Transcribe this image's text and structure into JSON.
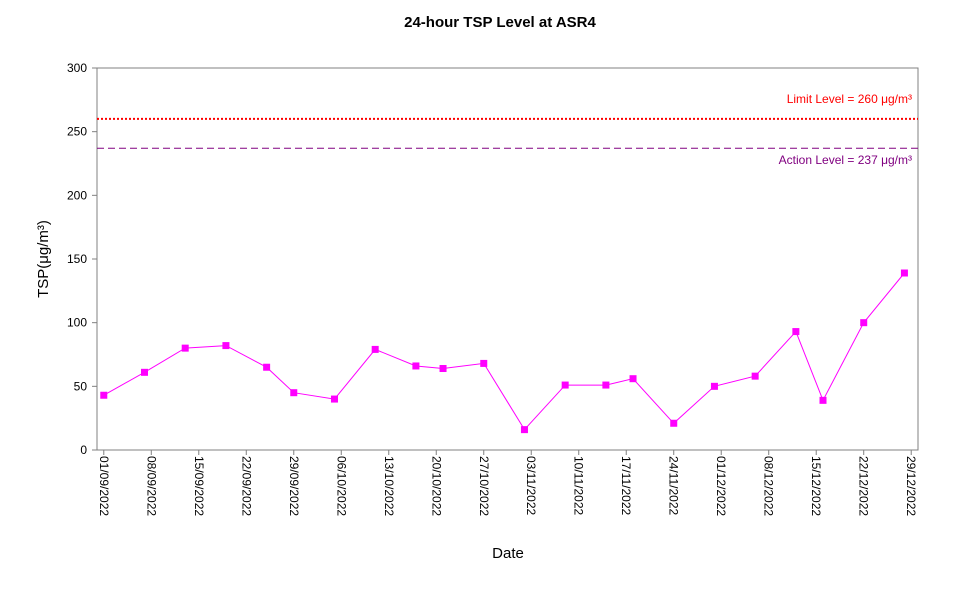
{
  "chart_data": {
    "type": "line",
    "title": "24-hour TSP Level at ASR4",
    "xlabel": "Date",
    "ylabel": "TSP(μg/m³)",
    "ylim": [
      0,
      300
    ],
    "yticks": [
      0,
      50,
      100,
      150,
      200,
      250,
      300
    ],
    "x_tick_labels": [
      "01/09/2022",
      "08/09/2022",
      "15/09/2022",
      "22/09/2022",
      "29/09/2022",
      "06/10/2022",
      "13/10/2022",
      "20/10/2022",
      "27/10/2022",
      "03/11/2022",
      "10/11/2022",
      "17/11/2022",
      "24/11/2022",
      "01/12/2022",
      "08/12/2022",
      "15/12/2022",
      "22/12/2022",
      "29/12/2022"
    ],
    "xlim": [
      "2022-08-31",
      "2022-12-30"
    ],
    "grid": false,
    "series": [
      {
        "name": "",
        "color": "#ff00ff",
        "marker": "square",
        "points": [
          {
            "date": "2022-09-01",
            "value": 43
          },
          {
            "date": "2022-09-07",
            "value": 61
          },
          {
            "date": "2022-09-13",
            "value": 80
          },
          {
            "date": "2022-09-19",
            "value": 82
          },
          {
            "date": "2022-09-25",
            "value": 65
          },
          {
            "date": "2022-09-29",
            "value": 45
          },
          {
            "date": "2022-10-05",
            "value": 40
          },
          {
            "date": "2022-10-11",
            "value": 79
          },
          {
            "date": "2022-10-17",
            "value": 66
          },
          {
            "date": "2022-10-21",
            "value": 64
          },
          {
            "date": "2022-10-27",
            "value": 68
          },
          {
            "date": "2022-11-02",
            "value": 16
          },
          {
            "date": "2022-11-08",
            "value": 51
          },
          {
            "date": "2022-11-14",
            "value": 51
          },
          {
            "date": "2022-11-18",
            "value": 56
          },
          {
            "date": "2022-11-24",
            "value": 21
          },
          {
            "date": "2022-11-30",
            "value": 50
          },
          {
            "date": "2022-12-06",
            "value": 58
          },
          {
            "date": "2022-12-12",
            "value": 93
          },
          {
            "date": "2022-12-16",
            "value": 39
          },
          {
            "date": "2022-12-22",
            "value": 100
          },
          {
            "date": "2022-12-28",
            "value": 139
          }
        ]
      }
    ],
    "reference_lines": [
      {
        "label": "Limit Level  = 260 μg/m³",
        "value": 260,
        "color": "#ff0000",
        "style": "dotted",
        "label_position": "above"
      },
      {
        "label": "Action Level  = 237 μg/m³",
        "value": 237,
        "color": "#800080",
        "style": "dashed",
        "label_position": "below"
      }
    ]
  }
}
